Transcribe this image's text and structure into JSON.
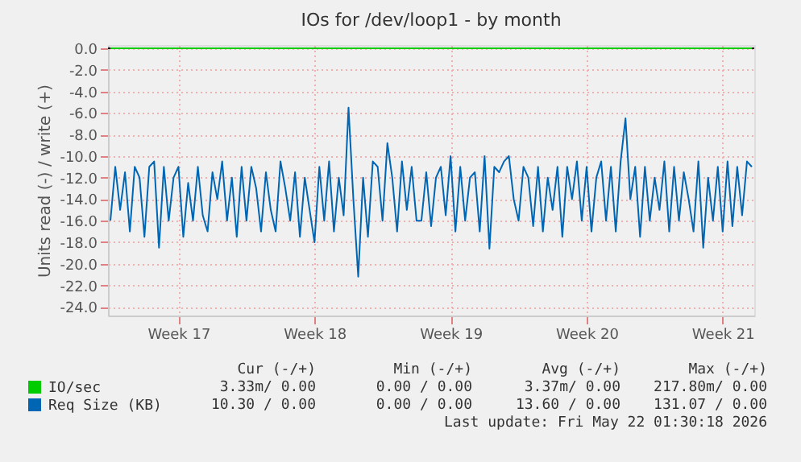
{
  "chart_data": {
    "type": "line",
    "title": "IOs for /dev/loop1 - by month",
    "ylabel": "Units read (-) / write (+)",
    "categories": [
      null,
      null,
      null,
      null,
      null,
      null,
      null,
      null,
      null,
      null,
      null,
      null,
      null,
      null,
      "Week 17",
      null,
      null,
      null,
      null,
      null,
      null,
      null,
      null,
      null,
      null,
      null,
      null,
      null,
      null,
      null,
      null,
      null,
      null,
      null,
      null,
      null,
      null,
      null,
      null,
      null,
      null,
      null,
      "Week 18",
      null,
      null,
      null,
      null,
      null,
      null,
      null,
      null,
      null,
      null,
      null,
      null,
      null,
      null,
      null,
      null,
      null,
      null,
      null,
      null,
      null,
      null,
      null,
      null,
      null,
      null,
      null,
      "Week 19",
      null,
      null,
      null,
      null,
      null,
      null,
      null,
      null,
      null,
      null,
      null,
      null,
      null,
      null,
      null,
      null,
      null,
      null,
      null,
      null,
      null,
      null,
      null,
      null,
      null,
      null,
      null,
      "Week 20",
      null,
      null,
      null,
      null,
      null,
      null,
      null,
      null,
      null,
      null,
      null,
      null,
      null,
      null,
      null,
      null,
      null,
      null,
      null,
      null,
      null,
      null,
      null,
      null,
      null,
      null,
      null,
      "Week 21",
      null,
      null,
      null,
      null,
      null,
      null
    ],
    "ylim": [
      -24.8,
      0.3
    ],
    "yticks": [
      {
        "value": 0,
        "label": "0.0"
      },
      {
        "value": -2,
        "label": "-2.0"
      },
      {
        "value": -4,
        "label": "-4.0"
      },
      {
        "value": -6,
        "label": "-6.0"
      },
      {
        "value": -8,
        "label": "-8.0"
      },
      {
        "value": -10,
        "label": "-10.0"
      },
      {
        "value": -12,
        "label": "-12.0"
      },
      {
        "value": -14,
        "label": "-14.0"
      },
      {
        "value": -16,
        "label": "-16.0"
      },
      {
        "value": -18,
        "label": "-18.0"
      },
      {
        "value": -20,
        "label": "-20.0"
      },
      {
        "value": -22,
        "label": "-22.0"
      },
      {
        "value": -24,
        "label": "-24.0"
      }
    ],
    "grid": true,
    "legend": "bottom left",
    "marker": "none",
    "line_style": "solid",
    "ref_lines": [
      {
        "axis": "y",
        "value": 0,
        "label": null,
        "color": "#000000"
      }
    ],
    "series": [
      {
        "name": "IO/sec",
        "color": "#00cc00",
        "values": [
          0,
          0,
          0,
          0,
          0,
          0,
          0,
          0,
          0,
          0,
          0,
          0,
          0,
          0,
          0,
          0,
          0,
          0,
          0,
          0,
          0,
          0,
          0,
          0,
          0,
          0,
          0,
          0,
          0,
          0,
          0,
          0,
          0,
          0,
          0,
          0,
          0,
          0,
          0,
          0,
          0,
          0,
          0,
          0,
          0,
          0,
          0,
          0,
          0,
          0,
          0,
          0,
          0,
          0,
          0,
          0,
          0,
          0,
          0,
          0,
          0,
          0,
          0,
          0,
          0,
          0,
          0,
          0,
          0,
          0,
          0,
          0,
          0,
          0,
          0,
          0,
          0,
          0,
          0,
          0,
          0,
          0,
          0,
          0,
          0,
          0,
          0,
          0,
          0,
          0,
          0,
          0,
          0,
          0,
          0,
          0,
          0,
          0,
          0,
          0,
          0,
          0,
          0,
          0,
          0,
          0,
          0,
          0,
          0,
          0,
          0,
          0,
          0,
          0,
          0,
          0,
          0,
          0,
          0,
          0,
          0,
          0,
          0,
          0,
          0,
          0,
          0,
          0,
          0,
          0,
          0,
          0,
          0
        ]
      },
      {
        "name": "Req Size (KB)",
        "color": "#0066b3",
        "values": [
          -16,
          -11,
          -15,
          -11.5,
          -17,
          -11,
          -12,
          -17.5,
          -11,
          -10.5,
          -18.5,
          -11,
          -16,
          -12,
          -11,
          -17.5,
          -12.5,
          -16,
          -11,
          -15.5,
          -17,
          -11.5,
          -14,
          -10.5,
          -16,
          -12,
          -17.5,
          -11,
          -16,
          -11,
          -13,
          -17,
          -11.5,
          -15,
          -17,
          -10.5,
          -13,
          -16,
          -11.5,
          -17.5,
          -12,
          -15,
          -18,
          -11,
          -16,
          -10.5,
          -17,
          -12,
          -15.5,
          -5.5,
          -14,
          -21.2,
          -12,
          -17.5,
          -10.5,
          -11,
          -16,
          -8.8,
          -12,
          -17,
          -10.5,
          -15,
          -11,
          -16,
          -16,
          -11.5,
          -16.5,
          -12,
          -11,
          -15.5,
          -10,
          -17,
          -11,
          -16,
          -12,
          -11.5,
          -17,
          -10,
          -18.6,
          -11,
          -11.5,
          -10.5,
          -10,
          -14,
          -16,
          -11,
          -12,
          -16.5,
          -11,
          -17,
          -12,
          -15,
          -11,
          -17.5,
          -11,
          -14,
          -10.5,
          -16,
          -11,
          -17,
          -12,
          -10.5,
          -16,
          -11,
          -17,
          -10.5,
          -6.5,
          -14,
          -11,
          -17.5,
          -11,
          -16,
          -12,
          -15,
          -10.5,
          -17,
          -11,
          -16,
          -11.5,
          -14,
          -17,
          -10.5,
          -18.5,
          -12,
          -16,
          -11,
          -17,
          -10.5,
          -16.5,
          -11,
          -15.5,
          -10.5,
          -11
        ]
      }
    ],
    "annotations": [
      "Cur (-/+)",
      "Min (-/+)",
      "Avg (-/+)",
      "Max (-/+)",
      "3.33m/ 0.00",
      "0.00 / 0.00",
      "3.37m/ 0.00",
      "217.80m/ 0.00",
      "10.30 / 0.00",
      "0.00 / 0.00",
      "13.60 / 0.00",
      "131.07 / 0.00",
      "Last update: Fri May 22 01:30:18 2026"
    ]
  }
}
